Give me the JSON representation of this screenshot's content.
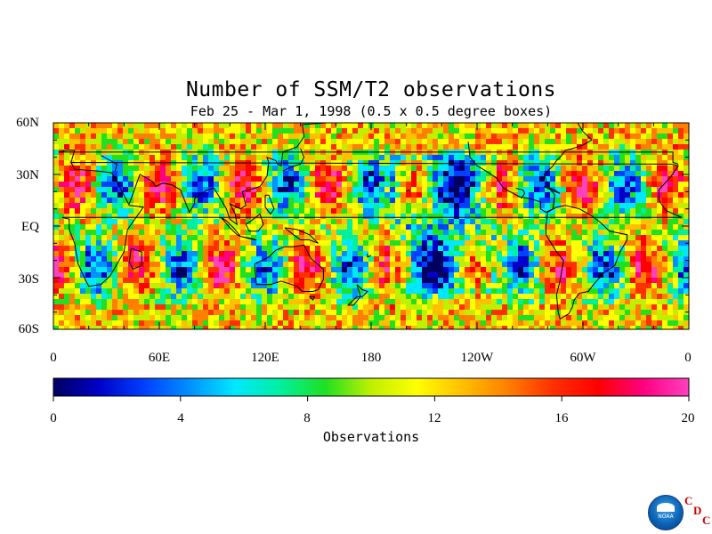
{
  "title": "Number of SSM/T2 observations",
  "subtitle": "Feb 25 - Mar 1, 1998 (0.5 x 0.5 degree boxes)",
  "lat_labels": [
    "60N",
    "30N",
    "EQ",
    "30S",
    "60S"
  ],
  "lon_labels": [
    "0",
    "60E",
    "120E",
    "180",
    "120W",
    "60W",
    "0"
  ],
  "colorbar": {
    "title": "Observations",
    "tick_labels": [
      "0",
      "4",
      "8",
      "12",
      "16",
      "20"
    ],
    "range": [
      0,
      20
    ],
    "colors": [
      "#000060",
      "#0000c8",
      "#0040ff",
      "#0090ff",
      "#00e8ff",
      "#00f0a0",
      "#20e020",
      "#c0f000",
      "#ffff00",
      "#ffc000",
      "#ff8000",
      "#ff3000",
      "#ff0000",
      "#ff0080",
      "#ff40c0"
    ]
  },
  "logo": {
    "agency_text": "NOAA",
    "cdc_letters": [
      "C",
      "D",
      "C"
    ]
  },
  "chart_data": {
    "type": "heatmap",
    "title": "Number of SSM/T2 observations",
    "subtitle": "Feb 25 - Mar 1, 1998 (0.5 x 0.5 degree boxes)",
    "x_label": "",
    "y_label": "",
    "x_range": [
      0,
      360
    ],
    "y_range": [
      -60,
      60
    ],
    "colorbar_label": "Observations",
    "value_range": [
      0,
      20
    ]
  }
}
